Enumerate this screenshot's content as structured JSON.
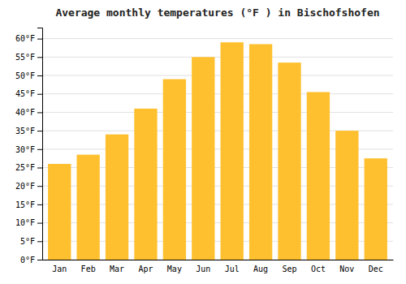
{
  "chart_data": {
    "type": "bar",
    "title": "Average monthly temperatures (°F ) in Bischofshofen",
    "categories": [
      "Jan",
      "Feb",
      "Mar",
      "Apr",
      "May",
      "Jun",
      "Jul",
      "Aug",
      "Sep",
      "Oct",
      "Nov",
      "Dec"
    ],
    "values": [
      26,
      28.5,
      34,
      41,
      49,
      55,
      59,
      58.5,
      53.5,
      45.5,
      35,
      27.5
    ],
    "color": "#FFC030",
    "ylim": [
      0,
      63
    ],
    "yticks": [
      {
        "value": 0,
        "label": "0°F"
      },
      {
        "value": 5,
        "label": "5°F"
      },
      {
        "value": 10,
        "label": "10°F"
      },
      {
        "value": 15,
        "label": "15°F"
      },
      {
        "value": 20,
        "label": "20°F"
      },
      {
        "value": 25,
        "label": "25°F"
      },
      {
        "value": 30,
        "label": "30°F"
      },
      {
        "value": 35,
        "label": "35°F"
      },
      {
        "value": 40,
        "label": "40°F"
      },
      {
        "value": 45,
        "label": "45°F"
      },
      {
        "value": 50,
        "label": "50°F"
      },
      {
        "value": 55,
        "label": "55°F"
      },
      {
        "value": 60,
        "label": "60°F"
      }
    ],
    "grid": true
  }
}
